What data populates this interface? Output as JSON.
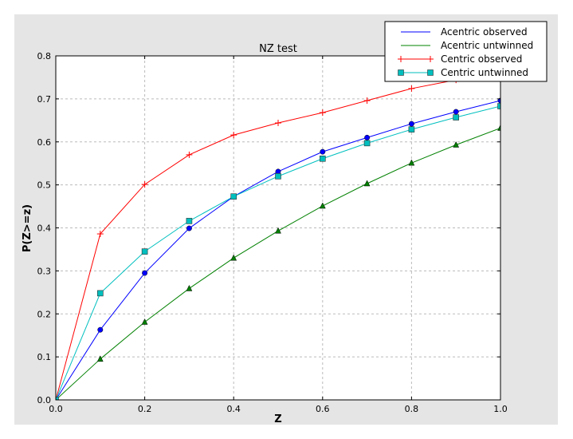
{
  "chart_data": {
    "type": "line",
    "title": "NZ test",
    "xlabel": "Z",
    "ylabel": "P(Z>=z)",
    "xlim": [
      0,
      1
    ],
    "ylim": [
      0,
      0.8
    ],
    "xticks": [
      "0.0",
      "0.2",
      "0.4",
      "0.6",
      "0.8",
      "1.0"
    ],
    "yticks": [
      "0.0",
      "0.1",
      "0.2",
      "0.3",
      "0.4",
      "0.5",
      "0.6",
      "0.7",
      "0.8"
    ],
    "grid": true,
    "legend_placement": "top-right",
    "x": [
      0.0,
      0.1,
      0.2,
      0.3,
      0.4,
      0.5,
      0.6,
      0.7,
      0.8,
      0.9,
      1.0
    ],
    "series": [
      {
        "name": "Acentric observed",
        "color": "#0000ff",
        "marker": "circle",
        "values": [
          0.0,
          0.163,
          0.295,
          0.399,
          0.473,
          0.531,
          0.577,
          0.61,
          0.642,
          0.67,
          0.696
        ]
      },
      {
        "name": "Acentric untwinned",
        "color": "#008000",
        "marker": "triangle",
        "values": [
          0.0,
          0.095,
          0.181,
          0.259,
          0.33,
          0.393,
          0.451,
          0.503,
          0.551,
          0.593,
          0.632
        ]
      },
      {
        "name": "Centric observed",
        "color": "#ff0000",
        "marker": "plus",
        "values": [
          0.0,
          0.386,
          0.501,
          0.57,
          0.616,
          0.644,
          0.668,
          0.696,
          0.724,
          0.744,
          0.762
        ]
      },
      {
        "name": "Centric untwinned",
        "color": "#00bfbf",
        "marker": "square",
        "values": [
          0.0,
          0.248,
          0.345,
          0.416,
          0.473,
          0.52,
          0.561,
          0.597,
          0.629,
          0.657,
          0.683
        ]
      }
    ]
  }
}
